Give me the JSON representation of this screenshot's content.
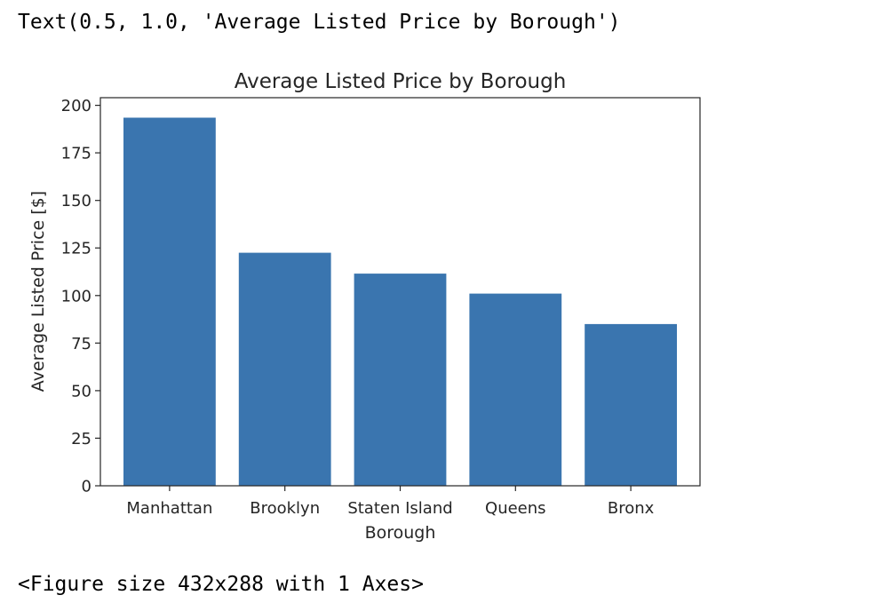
{
  "output": {
    "repr_text": "Text(0.5, 1.0, 'Average Listed Price by Borough')",
    "figure_text": "<Figure size 432x288 with 1 Axes>"
  },
  "colors": {
    "bar": "#3a75af",
    "axes": "#262626",
    "background": "#ffffff"
  },
  "chart_data": {
    "type": "bar",
    "title": "Average Listed Price by Borough",
    "xlabel": "Borough",
    "ylabel": "Average Listed Price [$]",
    "categories": [
      "Manhattan",
      "Brooklyn",
      "Staten Island",
      "Queens",
      "Bronx"
    ],
    "values": [
      193.5,
      122.5,
      111.5,
      101,
      85
    ],
    "ylim": [
      0,
      204
    ],
    "yticks": [
      0,
      25,
      50,
      75,
      100,
      125,
      150,
      175,
      200
    ],
    "grid": false
  }
}
